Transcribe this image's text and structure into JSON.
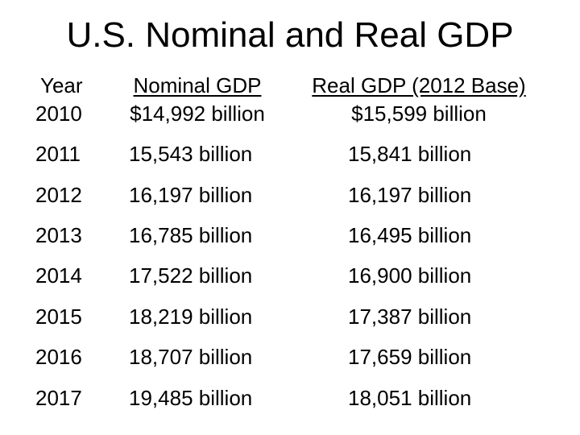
{
  "title": "U.S. Nominal and Real GDP",
  "headers": {
    "year": "Year",
    "nominal": "Nominal GDP",
    "real": "Real GDP (2012 Base)"
  },
  "first_row": {
    "year": "2010",
    "nominal": "$14,992 billion",
    "real": "$15,599 billion"
  },
  "rows": [
    {
      "year": "2011",
      "nominal": "15,543 billion",
      "real": "15,841 billion"
    },
    {
      "year": "2012",
      "nominal": "16,197 billion",
      "real": "16,197 billion"
    },
    {
      "year": "2013",
      "nominal": "16,785 billion",
      "real": "16,495 billion"
    },
    {
      "year": "2014",
      "nominal": "17,522 billion",
      "real": "16,900 billion"
    },
    {
      "year": "2015",
      "nominal": "18,219 billion",
      "real": "17,387 billion"
    },
    {
      "year": "2016",
      "nominal": "18,707 billion",
      "real": "17,659 billion"
    },
    {
      "year": "2017",
      "nominal": "19,485 billion",
      "real": "18,051 billion"
    }
  ]
}
